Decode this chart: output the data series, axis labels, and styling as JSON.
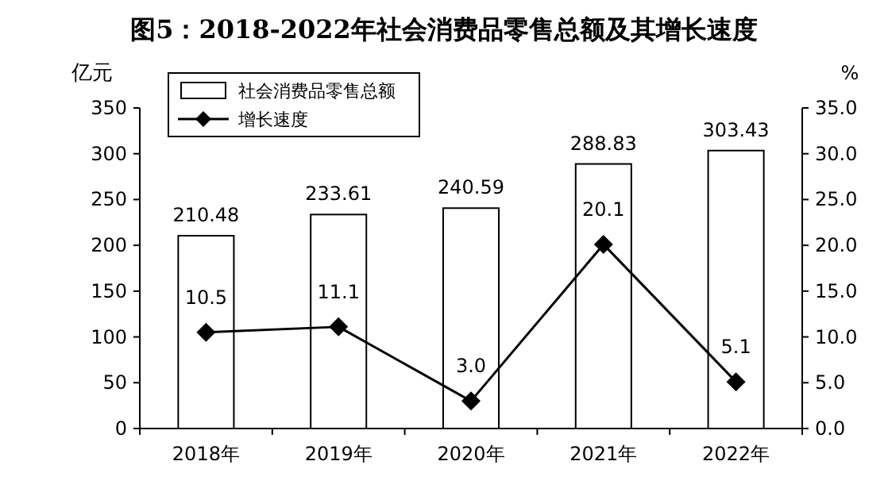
{
  "chart_data": {
    "type": "bar",
    "title": "图5：2018-2022年社会消费品零售总额及其增长速度",
    "ylabel": "亿元",
    "y2label": "%",
    "categories": [
      "2018年",
      "2019年",
      "2020年",
      "2021年",
      "2022年"
    ],
    "series": [
      {
        "name": "社会消费品零售总额",
        "color": "#ffffff",
        "values": [
          210.48,
          233.61,
          240.59,
          288.83,
          303.43
        ],
        "value_labels": [
          "210.48",
          "233.61",
          "240.59",
          "288.83",
          "303.43"
        ]
      },
      {
        "name": "增长速度",
        "type": "line",
        "axis": "y2",
        "color": "#000000",
        "marker": "diamond",
        "values": [
          10.5,
          11.1,
          3.0,
          20.1,
          5.1
        ],
        "value_labels": [
          "10.5",
          "11.1",
          "3.0",
          "20.1",
          "5.1"
        ]
      }
    ],
    "ylim": [
      0,
      350
    ],
    "yticks": [
      0,
      50,
      100,
      150,
      200,
      250,
      300,
      350
    ],
    "y2lim": [
      0,
      35
    ],
    "y2ticks": [
      {
        "value": 0,
        "label": "0.0"
      },
      {
        "value": 5,
        "label": "5.0"
      },
      {
        "value": 10,
        "label": "10.0"
      },
      {
        "value": 15,
        "label": "15.0"
      },
      {
        "value": 20,
        "label": "20.0"
      },
      {
        "value": 25,
        "label": "25.0"
      },
      {
        "value": 30,
        "label": "30.0"
      },
      {
        "value": 35,
        "label": "35.0"
      }
    ],
    "legend": "top left",
    "grid": false
  }
}
